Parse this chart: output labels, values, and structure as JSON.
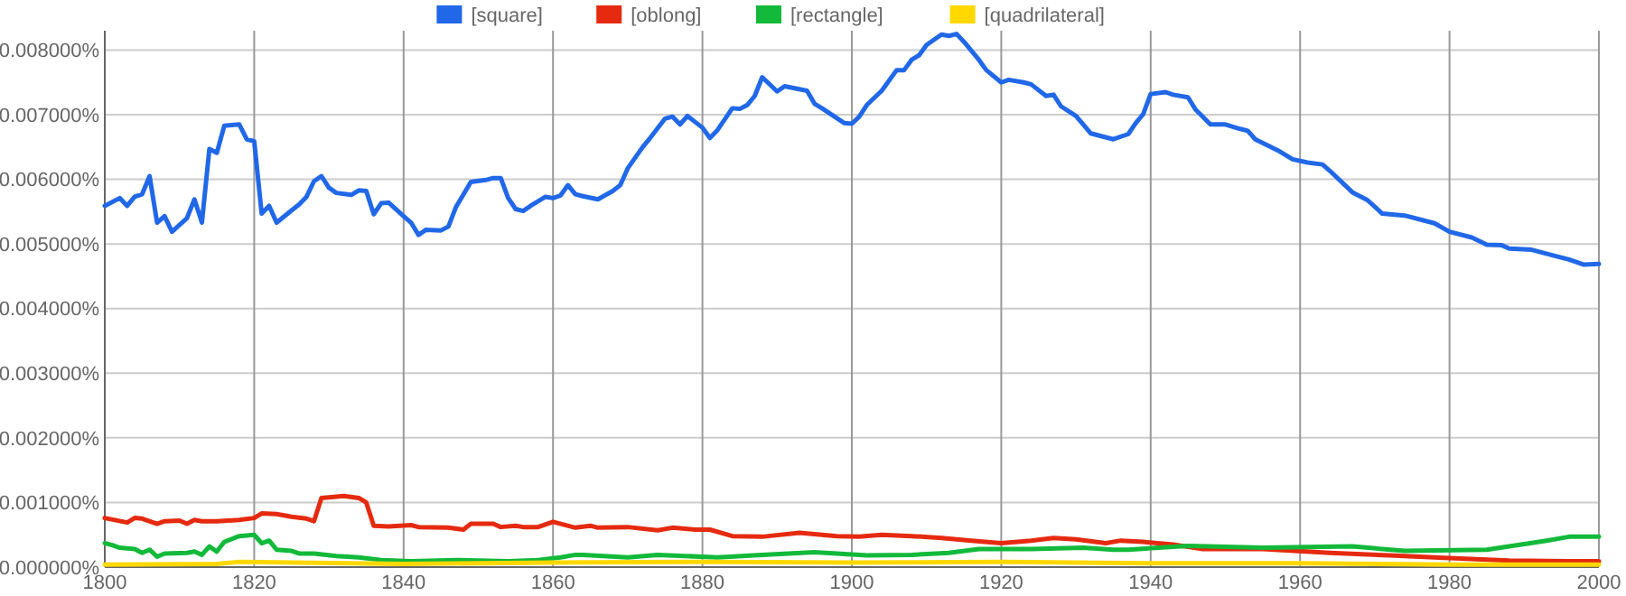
{
  "chart_data": {
    "type": "line",
    "legend": "top",
    "grid": true,
    "line_style": "solid",
    "marker": "none",
    "xlim": [
      1800,
      2000
    ],
    "xticks": [
      1800,
      1820,
      1840,
      1860,
      1880,
      1900,
      1920,
      1940,
      1960,
      1980,
      2000
    ],
    "ylim": [
      0,
      0.0083
    ],
    "yticks": [
      {
        "value": 0,
        "label": "0.000000%"
      },
      {
        "value": 0.001,
        "label": "0.001000%"
      },
      {
        "value": 0.002,
        "label": "0.002000%"
      },
      {
        "value": 0.003,
        "label": "0.003000%"
      },
      {
        "value": 0.004,
        "label": "0.004000%"
      },
      {
        "value": 0.005,
        "label": "0.005000%"
      },
      {
        "value": 0.006,
        "label": "0.006000%"
      },
      {
        "value": 0.007,
        "label": "0.007000%"
      },
      {
        "value": 0.008,
        "label": "0.008000%"
      }
    ],
    "series": [
      {
        "name": "[square]",
        "color": "#2168e8",
        "x": [
          1800,
          1802,
          1803,
          1804,
          1805,
          1806,
          1807,
          1808,
          1809,
          1811,
          1812,
          1813,
          1814,
          1815,
          1816,
          1818,
          1819,
          1820,
          1821,
          1822,
          1823,
          1825,
          1826,
          1827,
          1828,
          1829,
          1830,
          1831,
          1833,
          1834,
          1835,
          1836,
          1837,
          1838,
          1840,
          1841,
          1842,
          1843,
          1845,
          1846,
          1847,
          1849,
          1851,
          1852,
          1853,
          1854,
          1855,
          1856,
          1857,
          1859,
          1860,
          1861,
          1862,
          1863,
          1864,
          1866,
          1868,
          1869,
          1870,
          1872,
          1873,
          1875,
          1876,
          1877,
          1878,
          1880,
          1881,
          1882,
          1884,
          1885,
          1886,
          1887,
          1888,
          1890,
          1891,
          1894,
          1895,
          1896,
          1899,
          1900,
          1901,
          1902,
          1904,
          1906,
          1907,
          1908,
          1909,
          1910,
          1912,
          1913,
          1914,
          1915,
          1917,
          1918,
          1920,
          1921,
          1923,
          1924,
          1926,
          1927,
          1928,
          1930,
          1932,
          1935,
          1937,
          1938,
          1939,
          1940,
          1942,
          1943,
          1945,
          1946,
          1948,
          1950,
          1952,
          1953,
          1954,
          1957,
          1959,
          1961,
          1963,
          1964,
          1967,
          1969,
          1971,
          1974,
          1978,
          1980,
          1983,
          1985,
          1987,
          1988,
          1991,
          1994,
          1996,
          1998,
          2000
        ],
        "values": [
          0.00559,
          0.00571,
          0.00559,
          0.00573,
          0.00577,
          0.00605,
          0.00533,
          0.00543,
          0.00519,
          0.0054,
          0.00569,
          0.00533,
          0.00647,
          0.00641,
          0.00683,
          0.00685,
          0.00662,
          0.00659,
          0.00547,
          0.00559,
          0.00533,
          0.00552,
          0.00561,
          0.00573,
          0.00597,
          0.00605,
          0.00587,
          0.00579,
          0.00576,
          0.00583,
          0.00582,
          0.00546,
          0.00563,
          0.00564,
          0.00543,
          0.00533,
          0.00514,
          0.00522,
          0.00521,
          0.00527,
          0.00557,
          0.00596,
          0.00599,
          0.00602,
          0.00602,
          0.00571,
          0.00554,
          0.00551,
          0.00559,
          0.00573,
          0.00571,
          0.00575,
          0.00591,
          0.00577,
          0.00574,
          0.00569,
          0.00582,
          0.00591,
          0.00617,
          0.0065,
          0.00664,
          0.00694,
          0.00697,
          0.00685,
          0.00698,
          0.0068,
          0.00664,
          0.00676,
          0.0071,
          0.00709,
          0.00715,
          0.00729,
          0.00758,
          0.00736,
          0.00744,
          0.00737,
          0.00717,
          0.0071,
          0.00687,
          0.00686,
          0.00697,
          0.00715,
          0.00737,
          0.00769,
          0.00769,
          0.00785,
          0.00792,
          0.00808,
          0.00824,
          0.00822,
          0.00825,
          0.00813,
          0.00785,
          0.00769,
          0.0075,
          0.00754,
          0.0075,
          0.00747,
          0.00729,
          0.00731,
          0.00713,
          0.00698,
          0.00671,
          0.00662,
          0.0067,
          0.00687,
          0.00701,
          0.00732,
          0.00735,
          0.00731,
          0.00727,
          0.00708,
          0.00685,
          0.00685,
          0.00678,
          0.00675,
          0.00662,
          0.00645,
          0.00631,
          0.00626,
          0.00623,
          0.00613,
          0.0058,
          0.00568,
          0.00547,
          0.00544,
          0.00532,
          0.00519,
          0.0051,
          0.00499,
          0.00498,
          0.00493,
          0.00491,
          0.00482,
          0.00476,
          0.00468,
          0.00469
        ]
      },
      {
        "name": "[oblong]",
        "color": "#e52a0f",
        "x": [
          1800,
          1803,
          1804,
          1805,
          1807,
          1808,
          1810,
          1811,
          1812,
          1813,
          1815,
          1818,
          1820,
          1821,
          1823,
          1825,
          1827,
          1828,
          1829,
          1831,
          1832,
          1834,
          1835,
          1836,
          1838,
          1841,
          1842,
          1846,
          1848,
          1849,
          1852,
          1853,
          1855,
          1856,
          1858,
          1860,
          1863,
          1865,
          1866,
          1870,
          1874,
          1876,
          1879,
          1881,
          1884,
          1888,
          1893,
          1895,
          1898,
          1901,
          1904,
          1908,
          1912,
          1916,
          1920,
          1924,
          1927,
          1930,
          1934,
          1936,
          1939,
          1943,
          1947,
          1955,
          1964,
          1972,
          1980,
          1988,
          1996,
          2000
        ],
        "values": [
          0.00076,
          0.00069,
          0.00076,
          0.00075,
          0.00067,
          0.00071,
          0.00072,
          0.00067,
          0.00073,
          0.00071,
          0.00071,
          0.00073,
          0.00076,
          0.00083,
          0.00082,
          0.00078,
          0.00075,
          0.00071,
          0.00107,
          0.00109,
          0.0011,
          0.00107,
          0.001,
          0.00064,
          0.00063,
          0.00065,
          0.00062,
          0.00061,
          0.00058,
          0.00067,
          0.00067,
          0.00062,
          0.00064,
          0.00062,
          0.00062,
          0.0007,
          0.00061,
          0.00064,
          0.00061,
          0.00062,
          0.00057,
          0.00061,
          0.00058,
          0.00058,
          0.00048,
          0.00047,
          0.00053,
          0.00051,
          0.00048,
          0.00047,
          0.0005,
          0.00048,
          0.00045,
          0.00041,
          0.00037,
          0.00041,
          0.00045,
          0.00043,
          0.00037,
          0.00041,
          0.00039,
          0.00035,
          0.00028,
          0.00028,
          0.00022,
          0.00018,
          0.00014,
          0.0001,
          9e-05,
          9e-05
        ]
      },
      {
        "name": "[rectangle]",
        "color": "#12b93a",
        "x": [
          1800,
          1801,
          1802,
          1804,
          1805,
          1806,
          1807,
          1808,
          1811,
          1812,
          1813,
          1814,
          1815,
          1816,
          1818,
          1820,
          1821,
          1822,
          1823,
          1825,
          1826,
          1828,
          1831,
          1834,
          1837,
          1841,
          1847,
          1854,
          1858,
          1861,
          1863,
          1864,
          1870,
          1874,
          1882,
          1888,
          1895,
          1902,
          1908,
          1913,
          1917,
          1924,
          1931,
          1935,
          1937,
          1945,
          1955,
          1967,
          1974,
          1985,
          1993,
          1996,
          2000
        ],
        "values": [
          0.00037,
          0.00034,
          0.0003,
          0.00028,
          0.00022,
          0.00027,
          0.00016,
          0.00021,
          0.00022,
          0.00024,
          0.00019,
          0.00032,
          0.00024,
          0.00039,
          0.00048,
          0.0005,
          0.00037,
          0.00041,
          0.00027,
          0.00025,
          0.00021,
          0.00021,
          0.00017,
          0.00015,
          0.00011,
          9e-05,
          0.00011,
          9e-05,
          0.00011,
          0.00015,
          0.00019,
          0.00019,
          0.00015,
          0.00019,
          0.00015,
          0.00019,
          0.00023,
          0.00018,
          0.00019,
          0.00022,
          0.00028,
          0.00028,
          0.0003,
          0.00027,
          0.00027,
          0.00033,
          0.0003,
          0.00032,
          0.00025,
          0.00027,
          0.00041,
          0.00047,
          0.00047
        ]
      },
      {
        "name": "[quadrilateral]",
        "color": "#ffd800",
        "x": [
          1800,
          1815,
          1818,
          1840,
          1860,
          1880,
          1900,
          1920,
          1940,
          1960,
          1980,
          2000
        ],
        "values": [
          4e-05,
          5e-05,
          8e-05,
          5e-05,
          7e-05,
          8e-05,
          7e-05,
          8e-05,
          6e-05,
          6e-05,
          4e-05,
          4e-05
        ]
      }
    ]
  }
}
